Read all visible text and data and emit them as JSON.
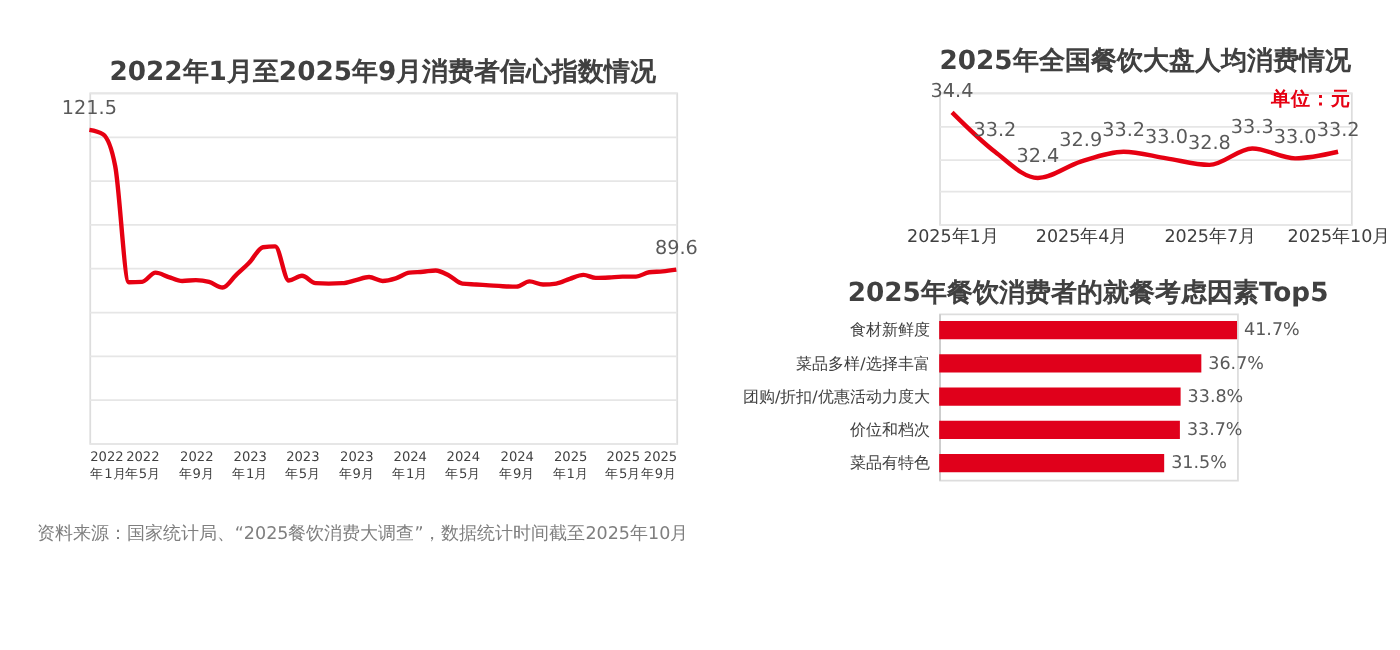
{
  "chart_data": [
    {
      "type": "line",
      "title": "2022年1月至2025年9月消费者信心指数情况",
      "x": [
        "2022-01",
        "2022-02",
        "2022-03",
        "2022-04",
        "2022-05",
        "2022-06",
        "2022-07",
        "2022-08",
        "2022-09",
        "2022-10",
        "2022-11",
        "2022-12",
        "2023-01",
        "2023-02",
        "2023-03",
        "2023-04",
        "2023-05",
        "2023-06",
        "2023-07",
        "2023-08",
        "2023-09",
        "2023-10",
        "2023-11",
        "2023-12",
        "2024-01",
        "2024-02",
        "2024-03",
        "2024-04",
        "2024-05",
        "2024-06",
        "2024-07",
        "2024-08",
        "2024-09",
        "2024-10",
        "2024-11",
        "2024-12",
        "2025-01",
        "2025-02",
        "2025-03",
        "2025-04",
        "2025-05",
        "2025-06",
        "2025-07",
        "2025-08",
        "2025-09"
      ],
      "series": [
        {
          "color": "#e60012",
          "values": [
            121.5,
            120.5,
            113.2,
            86.7,
            86.8,
            88.9,
            87.9,
            87.0,
            87.2,
            86.8,
            85.5,
            88.3,
            91.2,
            94.7,
            94.9,
            87.1,
            88.2,
            86.5,
            86.4,
            86.5,
            87.2,
            87.9,
            87.0,
            87.6,
            88.9,
            89.1,
            89.4,
            88.2,
            86.4,
            86.2,
            86.0,
            85.8,
            85.7,
            86.9,
            86.2,
            86.4,
            87.5,
            88.4,
            87.7,
            87.8,
            88.0,
            88.0,
            89.0,
            89.2,
            89.6
          ],
          "value_labels": [
            "121.5",
            null,
            null,
            null,
            null,
            null,
            null,
            null,
            null,
            null,
            null,
            null,
            null,
            null,
            null,
            null,
            null,
            null,
            null,
            null,
            null,
            null,
            null,
            null,
            null,
            null,
            null,
            null,
            null,
            null,
            null,
            null,
            null,
            null,
            null,
            null,
            null,
            null,
            null,
            null,
            null,
            null,
            null,
            null,
            "89.6"
          ]
        }
      ],
      "xlim": [
        "2022-01",
        "2025-09"
      ],
      "xticks": [
        {
          "value": "2022-01",
          "label": "2022年1月"
        },
        {
          "value": "2022-05",
          "label": "2022年5月"
        },
        {
          "value": "2022-09",
          "label": "2022年9月"
        },
        {
          "value": "2023-01",
          "label": "2023年1月"
        },
        {
          "value": "2023-05",
          "label": "2023年5月"
        },
        {
          "value": "2023-09",
          "label": "2023年9月"
        },
        {
          "value": "2024-01",
          "label": "2024年1月"
        },
        {
          "value": "2024-05",
          "label": "2024年5月"
        },
        {
          "value": "2024-09",
          "label": "2024年9月"
        },
        {
          "value": "2025-01",
          "label": "2025年1月"
        },
        {
          "value": "2025-05",
          "label": "2025年5月"
        },
        {
          "value": "2025-09",
          "label": "2025年9月"
        }
      ],
      "ylim": [
        50,
        130
      ],
      "yticks": [
        {
          "value": 50,
          "label": null
        },
        {
          "value": 60,
          "label": null
        },
        {
          "value": 70,
          "label": null
        },
        {
          "value": 80,
          "label": null
        },
        {
          "value": 90,
          "label": null
        },
        {
          "value": 100,
          "label": null
        },
        {
          "value": 110,
          "label": null
        },
        {
          "value": 120,
          "label": null
        },
        {
          "value": 130,
          "label": null
        }
      ],
      "tick_labels": "x",
      "grid": "y",
      "marker": "none",
      "line_style": "solid",
      "annotations": [
        "资料来源：国家统计局、“2025餐饮消费大调查”，数据统计时间截至2025年10月"
      ]
    },
    {
      "type": "line",
      "title": "2025年全国餐饮大盘人均消费情况",
      "categories": [
        "2025年1月",
        null,
        null,
        "2025年4月",
        null,
        null,
        "2025年7月",
        null,
        null,
        "2025年10月"
      ],
      "series": [
        {
          "color": "#e60012",
          "values": [
            34.4,
            33.2,
            32.4,
            32.9,
            33.2,
            33.0,
            32.8,
            33.3,
            33.0,
            33.2
          ],
          "value_labels": [
            "34.4",
            "33.2",
            "32.4",
            "32.9",
            "33.2",
            "33.0",
            "32.8",
            "33.3",
            "33.0",
            "33.2"
          ]
        }
      ],
      "ylim": [
        31,
        35
      ],
      "yticks": [
        {
          "value": 31,
          "label": null
        },
        {
          "value": 32,
          "label": null
        },
        {
          "value": 33,
          "label": null
        },
        {
          "value": 34,
          "label": null
        },
        {
          "value": 35,
          "label": null
        }
      ],
      "tick_labels": "x",
      "grid": "y",
      "marker": "none",
      "line_style": "solid",
      "annotations": [
        "单位：元"
      ]
    },
    {
      "type": "bar",
      "orientation": "horizontal",
      "title": "2025年餐饮消费者的就餐考虑因素Top5",
      "categories": [
        "食材新鲜度",
        "菜品多样/选择丰富",
        "团购/折扣/优惠活动力度大",
        "价位和档次",
        "菜品有特色"
      ],
      "values": [
        41.7,
        36.7,
        33.8,
        33.7,
        31.5
      ],
      "value_labels": [
        "41.7%",
        "36.7%",
        "33.8%",
        "33.7%",
        "31.5%"
      ],
      "color": "#e0001b",
      "tick_labels": "y",
      "grid": false
    }
  ]
}
